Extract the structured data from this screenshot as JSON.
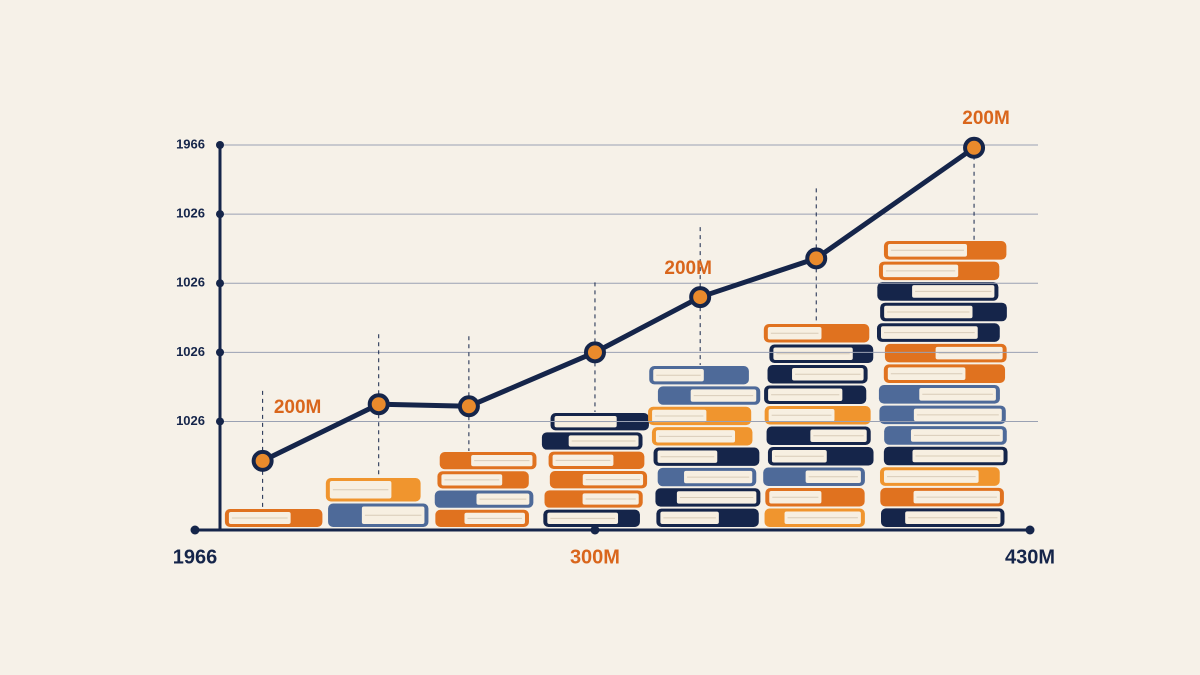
{
  "chart_data": {
    "type": "line",
    "x": [
      8.1,
      22.0,
      32.8,
      47.9,
      60.5,
      74.4,
      93.3
    ],
    "values": [
      0.43,
      1.25,
      1.22,
      2.0,
      2.8,
      3.36,
      4.96
    ],
    "color": "#15254a",
    "xlim": [
      0,
      100
    ],
    "xticks": [
      {
        "value": 0,
        "label": "1966"
      },
      {
        "value": 47.9,
        "label": "300M"
      },
      {
        "value": 100,
        "label": "430M"
      }
    ],
    "xtick_colors": [
      "#15254a",
      "#d9661c",
      "#15254a"
    ],
    "ylim": [
      -0.57,
      5
    ],
    "yticks": [
      {
        "value": 5,
        "label": "1966"
      },
      {
        "value": 4,
        "label": "1026"
      },
      {
        "value": 3,
        "label": "1026"
      },
      {
        "value": 2,
        "label": "1026"
      },
      {
        "value": 1,
        "label": "1026"
      }
    ],
    "grid": true,
    "annotations": [
      "200M",
      "200M",
      "200M"
    ],
    "annotation_color": "#d9661c"
  }
}
